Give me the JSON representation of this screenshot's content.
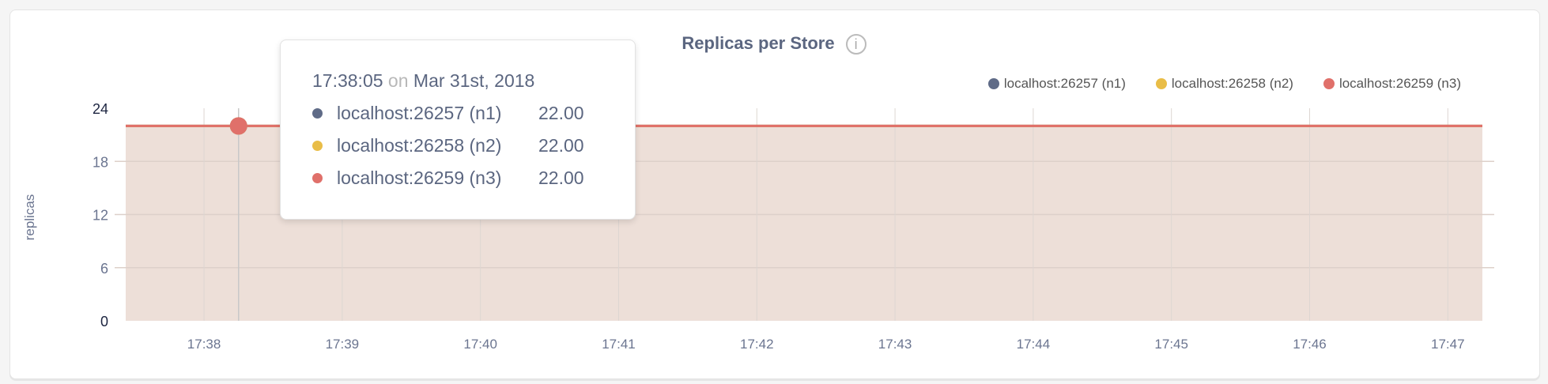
{
  "chart_data": {
    "type": "area",
    "title": "Replicas per Store",
    "ylabel": "replicas",
    "ylim": [
      0,
      24
    ],
    "yticks": [
      "0",
      "6",
      "12",
      "18",
      "24"
    ],
    "xticks": [
      "17:38",
      "17:39",
      "17:40",
      "17:41",
      "17:42",
      "17:43",
      "17:44",
      "17:45",
      "17:46",
      "17:47"
    ],
    "xlim": [
      "17:37:26",
      "17:47:15"
    ],
    "grid": true,
    "legend_placement": "top-right",
    "series": [
      {
        "name": "localhost:26257 (n1)",
        "color": "#5f6b87",
        "values": [
          {
            "x": "17:37:26",
            "y": 22
          },
          {
            "x": "17:47:15",
            "y": 22
          }
        ]
      },
      {
        "name": "localhost:26258 (n2)",
        "color": "#e9bd47",
        "values": [
          {
            "x": "17:37:26",
            "y": 22
          },
          {
            "x": "17:47:15",
            "y": 22
          }
        ]
      },
      {
        "name": "localhost:26259 (n3)",
        "color": "#e0706a",
        "values": [
          {
            "x": "17:37:26",
            "y": 22
          },
          {
            "x": "17:47:15",
            "y": 22
          }
        ]
      }
    ],
    "fill_color": "#eddfd8",
    "hover": {
      "x": "17:38:15",
      "y": 22
    }
  },
  "tooltip": {
    "time": "17:38:05",
    "on": "on",
    "date": "Mar 31st, 2018",
    "rows": [
      {
        "label": "localhost:26257 (n1)",
        "value": "22.00",
        "color": "#5f6b87"
      },
      {
        "label": "localhost:26258 (n2)",
        "value": "22.00",
        "color": "#e9bd47"
      },
      {
        "label": "localhost:26259 (n3)",
        "value": "22.00",
        "color": "#e0706a"
      }
    ]
  },
  "info_icon": "info-circle-icon"
}
